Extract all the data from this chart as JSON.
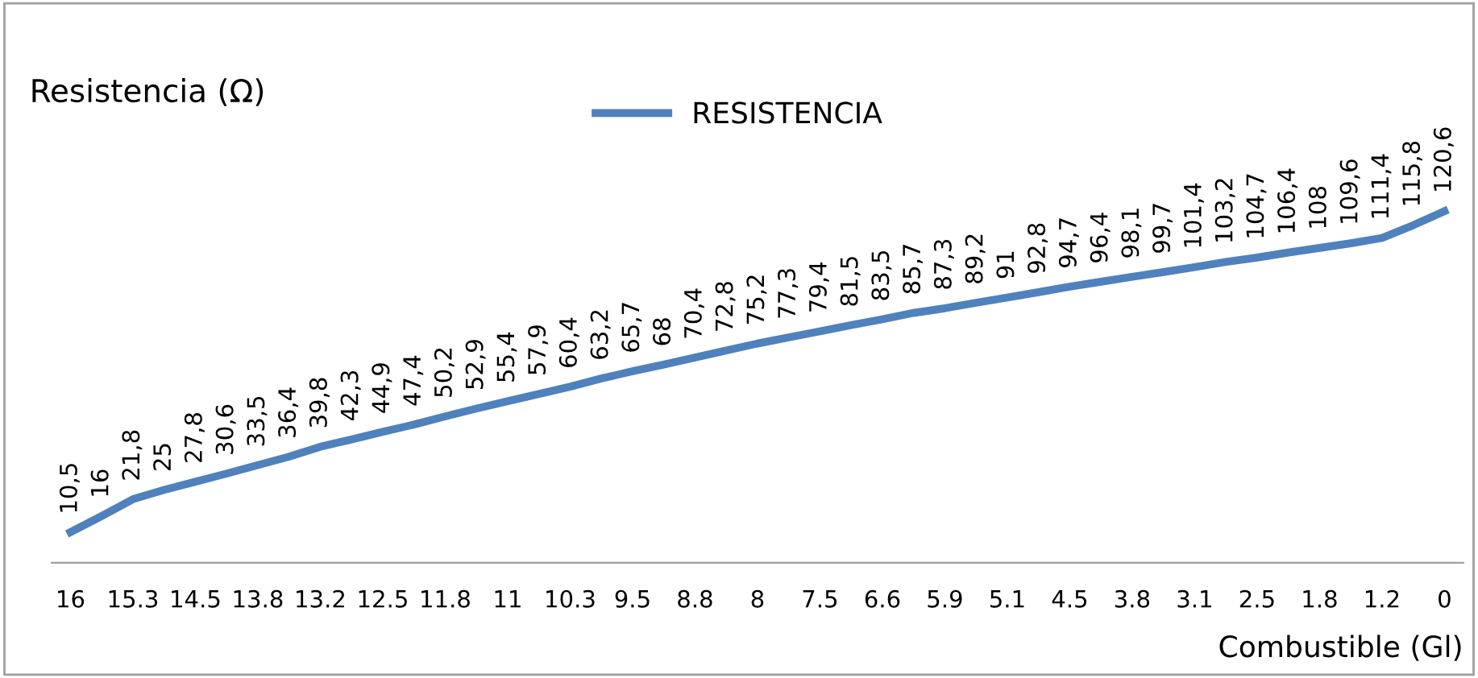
{
  "chart_data": {
    "type": "line",
    "ylabel": "Resistencia (Ω)",
    "xlabel": "Combustible (Gl)",
    "legend": "top",
    "marker": "none",
    "line_style": "solid",
    "categories": [
      "16",
      null,
      "15.3",
      null,
      "14.5",
      null,
      "13.8",
      null,
      "13.2",
      null,
      "12.5",
      null,
      "11.8",
      null,
      "11",
      null,
      "10.3",
      null,
      "9.5",
      null,
      "8.8",
      null,
      "8",
      null,
      "7.5",
      null,
      "6.6",
      null,
      "5.9",
      null,
      "5.1",
      null,
      "4.5",
      null,
      "3.8",
      null,
      "3.1",
      null,
      "2.5",
      null,
      "1.8",
      null,
      "1.2",
      null,
      "0"
    ],
    "series": [
      {
        "name": "RESISTENCIA",
        "color": "#4f81bd",
        "values": [
          10.5,
          16,
          21.8,
          25,
          27.8,
          30.6,
          33.5,
          36.4,
          39.8,
          42.3,
          44.9,
          47.4,
          50.2,
          52.9,
          55.4,
          57.9,
          60.4,
          63.2,
          65.7,
          68,
          70.4,
          72.8,
          75.2,
          77.3,
          79.4,
          81.5,
          83.5,
          85.7,
          87.3,
          89.2,
          91,
          92.8,
          94.7,
          96.4,
          98.1,
          99.7,
          101.4,
          103.2,
          104.7,
          106.4,
          108,
          109.6,
          111.4,
          115.8,
          120.6
        ],
        "value_labels": [
          "10,5",
          "16",
          "21,8",
          "25",
          "27,8",
          "30,6",
          "33,5",
          "36,4",
          "39,8",
          "42,3",
          "44,9",
          "47,4",
          "50,2",
          "52,9",
          "55,4",
          "57,9",
          "60,4",
          "63,2",
          "65,7",
          "68",
          "70,4",
          "72,8",
          "75,2",
          "77,3",
          "79,4",
          "81,5",
          "83,5",
          "85,7",
          "87,3",
          "89,2",
          "91",
          "92,8",
          "94,7",
          "96,4",
          "98,1",
          "99,7",
          "101,4",
          "103,2",
          "104,7",
          "106,4",
          "108",
          "109,6",
          "111,4",
          "115,8",
          "120,6"
        ]
      }
    ]
  }
}
